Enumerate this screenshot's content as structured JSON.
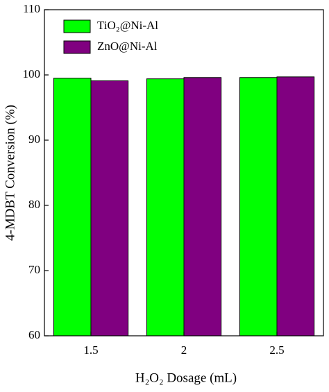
{
  "chart_data": {
    "type": "bar",
    "x_label": "H₂O₂ Dosage (mL)",
    "y_label": "4-MDBT Conversion (%)",
    "categories": [
      "1.5",
      "2",
      "2.5"
    ],
    "series": [
      {
        "name": "TiO₂@Ni-Al",
        "color": "#00ff00",
        "values": [
          99.5,
          99.4,
          99.6
        ]
      },
      {
        "name": "ZnO@Ni-Al",
        "color": "#800080",
        "values": [
          99.1,
          99.6,
          99.7
        ]
      }
    ],
    "ylim": [
      60,
      110
    ],
    "yticks": [
      60,
      70,
      80,
      90,
      100,
      110
    ],
    "legend": "upper left"
  }
}
